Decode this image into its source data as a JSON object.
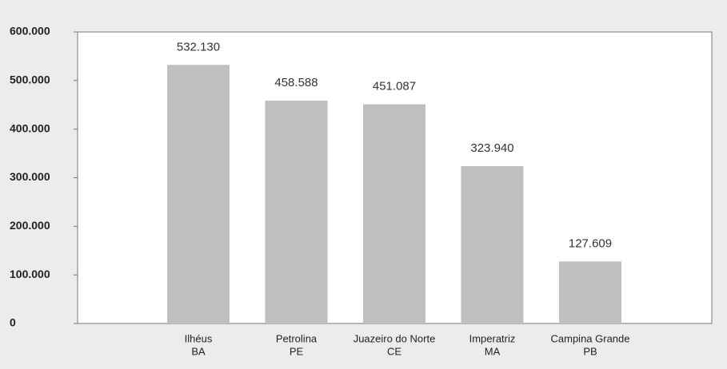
{
  "chart_data": {
    "type": "bar",
    "categories": [
      [
        "Ilhéus",
        "BA"
      ],
      [
        "Petrolina",
        "PE"
      ],
      [
        "Juazeiro do Norte",
        "CE"
      ],
      [
        "Imperatriz",
        "MA"
      ],
      [
        "Campina Grande",
        "PB"
      ]
    ],
    "values": [
      532130,
      458588,
      451087,
      323940,
      127609
    ],
    "value_labels": [
      "532.130",
      "458.588",
      "451.087",
      "323.940",
      "127.609"
    ],
    "color": "#bdbfc0",
    "ylim": [
      0,
      600000
    ],
    "yticks": [
      0,
      {
        "value": 100000,
        "label": "100.000"
      },
      {
        "value": 200000,
        "label": "200.000"
      },
      {
        "value": 300000,
        "label": "300.000"
      },
      {
        "value": 400000,
        "label": "400.000"
      },
      {
        "value": 500000,
        "label": "500.000"
      },
      {
        "value": 600000,
        "label": "600.000"
      }
    ],
    "grid": false
  }
}
